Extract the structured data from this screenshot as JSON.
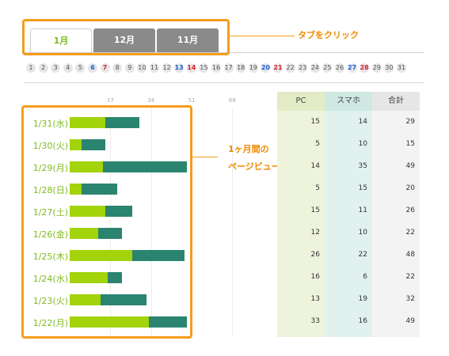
{
  "tabs": [
    {
      "label": "1月",
      "active": true
    },
    {
      "label": "12月",
      "active": false
    },
    {
      "label": "11月",
      "active": false
    }
  ],
  "annotations": {
    "tab_click": "タブをクリック",
    "chart_line1": "1ヶ月間の",
    "chart_line2": "ページビューの推移を表示"
  },
  "days": [
    {
      "n": "1",
      "c": ""
    },
    {
      "n": "2",
      "c": ""
    },
    {
      "n": "3",
      "c": ""
    },
    {
      "n": "4",
      "c": ""
    },
    {
      "n": "5",
      "c": ""
    },
    {
      "n": "6",
      "c": "blue"
    },
    {
      "n": "7",
      "c": "red"
    },
    {
      "n": "8",
      "c": ""
    },
    {
      "n": "9",
      "c": ""
    },
    {
      "n": "10",
      "c": ""
    },
    {
      "n": "11",
      "c": ""
    },
    {
      "n": "12",
      "c": ""
    },
    {
      "n": "13",
      "c": "blue"
    },
    {
      "n": "14",
      "c": "red"
    },
    {
      "n": "15",
      "c": ""
    },
    {
      "n": "16",
      "c": ""
    },
    {
      "n": "17",
      "c": ""
    },
    {
      "n": "18",
      "c": ""
    },
    {
      "n": "19",
      "c": ""
    },
    {
      "n": "20",
      "c": "blue"
    },
    {
      "n": "21",
      "c": "red"
    },
    {
      "n": "22",
      "c": ""
    },
    {
      "n": "23",
      "c": ""
    },
    {
      "n": "24",
      "c": ""
    },
    {
      "n": "25",
      "c": ""
    },
    {
      "n": "26",
      "c": ""
    },
    {
      "n": "27",
      "c": "blue"
    },
    {
      "n": "28",
      "c": "red"
    },
    {
      "n": "29",
      "c": ""
    },
    {
      "n": "30",
      "c": ""
    },
    {
      "n": "31",
      "c": ""
    }
  ],
  "axis": {
    "ticks": [
      "17",
      "34",
      "51",
      "68"
    ],
    "max": 68
  },
  "columns": {
    "pc": "PC",
    "sp": "スマホ",
    "total": "合計"
  },
  "colors": {
    "pc": "#a3d30b",
    "sp": "#2a8470",
    "accent": "#f59d1b",
    "date": "#7fba1e"
  },
  "chart_data": {
    "type": "bar",
    "stacked": true,
    "orientation": "horizontal",
    "categories": [
      "1/31(水)",
      "1/30(火)",
      "1/29(月)",
      "1/28(日)",
      "1/27(土)",
      "1/26(金)",
      "1/25(木)",
      "1/24(水)",
      "1/23(火)",
      "1/22(月)"
    ],
    "series": [
      {
        "name": "PC",
        "values": [
          15,
          5,
          14,
          5,
          15,
          12,
          26,
          16,
          13,
          33
        ]
      },
      {
        "name": "スマホ",
        "values": [
          14,
          10,
          35,
          15,
          11,
          10,
          22,
          6,
          19,
          16
        ]
      }
    ],
    "totals": [
      29,
      15,
      49,
      20,
      26,
      22,
      48,
      22,
      32,
      49
    ],
    "xlim": [
      0,
      68
    ]
  }
}
